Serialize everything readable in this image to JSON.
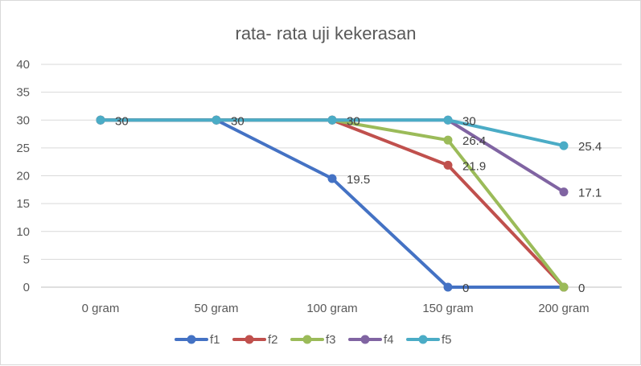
{
  "chart_data": {
    "type": "line",
    "title": "rata- rata uji kekerasan",
    "xlabel": "",
    "ylabel": "",
    "categories": [
      "0 gram",
      "50 gram",
      "100 gram",
      "150 gram",
      "200 gram"
    ],
    "ylim": [
      0,
      40
    ],
    "yticks": [
      0,
      5,
      10,
      15,
      20,
      25,
      30,
      35,
      40
    ],
    "grid": true,
    "legend_position": "bottom",
    "series": [
      {
        "name": "f1",
        "color": "#4472C4",
        "values": [
          30,
          30,
          19.5,
          0,
          0
        ]
      },
      {
        "name": "f2",
        "color": "#C0504D",
        "values": [
          30,
          30,
          30,
          21.9,
          0
        ]
      },
      {
        "name": "f3",
        "color": "#9BBB59",
        "values": [
          30,
          30,
          30,
          26.4,
          0
        ]
      },
      {
        "name": "f4",
        "color": "#8064A2",
        "values": [
          30,
          30,
          30,
          30,
          17.1
        ]
      },
      {
        "name": "f5",
        "color": "#4BACC6",
        "values": [
          30,
          30,
          30,
          30,
          25.4
        ]
      }
    ],
    "data_labels": [
      {
        "series": "f1",
        "index": 2,
        "text": "19.5"
      },
      {
        "series": "f1",
        "index": 3,
        "text": "0"
      },
      {
        "series": "f2",
        "index": 3,
        "text": "21.9"
      },
      {
        "series": "f3",
        "index": 3,
        "text": "26.4"
      },
      {
        "series": "f3",
        "index": 4,
        "text": "0"
      },
      {
        "series": "f4",
        "index": 4,
        "text": "17.1"
      },
      {
        "series": "f5",
        "index": 0,
        "text": "30"
      },
      {
        "series": "f5",
        "index": 1,
        "text": "30"
      },
      {
        "series": "f5",
        "index": 2,
        "text": "30"
      },
      {
        "series": "f5",
        "index": 3,
        "text": "30"
      },
      {
        "series": "f5",
        "index": 4,
        "text": "25.4"
      }
    ]
  }
}
